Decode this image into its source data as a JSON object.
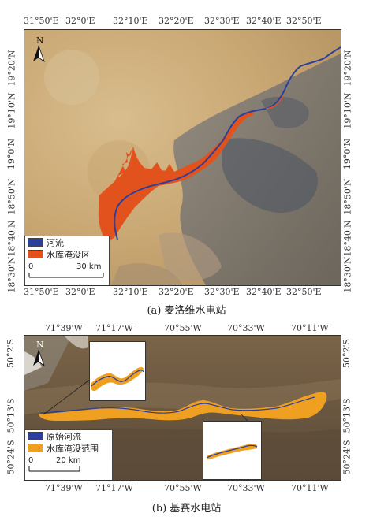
{
  "panel_a": {
    "top_ticks": [
      "31°50'E",
      "32°0'E",
      "32°10'E",
      "32°20'E",
      "32°30'E",
      "32°40'E",
      "32°50'E"
    ],
    "bottom_ticks": [
      "31°50'E",
      "32°0'E",
      "32°10'E",
      "32°20'E",
      "32°30'E",
      "32°40'E",
      "32°50'E"
    ],
    "left_ticks": [
      "19°20'N",
      "19°10'N",
      "19°0'N",
      "18°50'N",
      "18°40'N",
      "18°30'N"
    ],
    "right_ticks": [
      "19°20'N",
      "19°10'N",
      "19°0'N",
      "18°50'N",
      "18°40'N",
      "18°30'N"
    ],
    "north_label": "N",
    "legend": {
      "river_label": "河流",
      "flood_label": "水库淹没区",
      "scale_zero": "0",
      "scale_label": "30 km"
    },
    "caption": "(a) 麦洛维水电站"
  },
  "panel_b": {
    "top_ticks": [
      "71°39'W",
      "71°17'W",
      "70°55'W",
      "70°33'W",
      "70°11'W"
    ],
    "bottom_ticks": [
      "71°39'W",
      "71°17'W",
      "70°55'W",
      "70°33'W",
      "70°11'W"
    ],
    "left_ticks": [
      "50°2'S",
      "50°13'S",
      "50°24'S"
    ],
    "right_ticks": [
      "50°2'S",
      "50°13'S",
      "50°24'S"
    ],
    "north_label": "N",
    "legend": {
      "river_label": "原始河流",
      "flood_label": "水库淹没范围",
      "scale_zero": "0",
      "scale_label": "20 km"
    },
    "caption": "(b) 基赛水电站"
  },
  "colors": {
    "river": "#2b3f9e",
    "flood_a": "#e2521c",
    "flood_b": "#f0a020",
    "desert": "#c9a874",
    "rock": "#6b6b6b",
    "steppe": "#6e5a40"
  }
}
